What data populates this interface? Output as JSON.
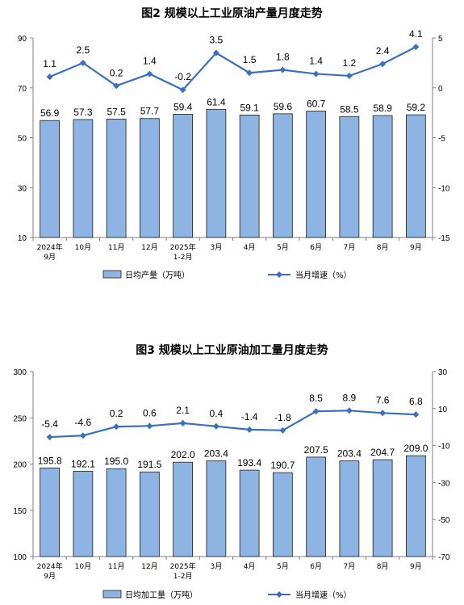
{
  "chart_data": [
    {
      "type": "bar",
      "title": "图2  规模以上工业原油产量月度走势",
      "categories": [
        "2024年\n9月",
        "10月",
        "11月",
        "12月",
        "2025年\n1-2月",
        "3月",
        "4月",
        "5月",
        "6月",
        "7月",
        "8月",
        "9月"
      ],
      "series": [
        {
          "name": "日均产量（万吨）",
          "type": "bar",
          "axis": "left",
          "color": "#8DB4E2",
          "values": [
            56.9,
            57.3,
            57.5,
            57.7,
            59.4,
            61.4,
            59.1,
            59.6,
            60.7,
            58.5,
            58.9,
            59.2
          ]
        },
        {
          "name": "当月增速（%）",
          "type": "line",
          "axis": "right",
          "color": "#3A6FC1",
          "values": [
            1.1,
            2.5,
            0.2,
            1.4,
            -0.2,
            3.5,
            1.5,
            1.8,
            1.4,
            1.2,
            2.4,
            4.1
          ]
        }
      ],
      "ylim_left": [
        10,
        90
      ],
      "yticks_left": [
        10,
        30,
        50,
        70,
        90
      ],
      "ylim_right": [
        -15,
        5
      ],
      "yticks_right": [
        -15,
        -10,
        -5,
        0,
        5
      ],
      "legend_position": "bottom",
      "grid": false
    },
    {
      "type": "bar",
      "title": "图3  规模以上工业原油加工量月度走势",
      "categories": [
        "2024年\n9月",
        "10月",
        "11月",
        "12月",
        "2025年\n1-2月",
        "3月",
        "4月",
        "5月",
        "6月",
        "7月",
        "8月",
        "9月"
      ],
      "series": [
        {
          "name": "日均加工量（万吨）",
          "type": "bar",
          "axis": "left",
          "color": "#8DB4E2",
          "values": [
            195.8,
            192.1,
            195.0,
            191.5,
            202.0,
            203.4,
            193.4,
            190.7,
            207.5,
            203.4,
            204.7,
            209.0
          ]
        },
        {
          "name": "当月增速（%）",
          "type": "line",
          "axis": "right",
          "color": "#3A6FC1",
          "values": [
            -5.4,
            -4.6,
            0.2,
            0.6,
            2.1,
            0.4,
            -1.4,
            -1.8,
            8.5,
            8.9,
            7.6,
            6.8
          ]
        }
      ],
      "ylim_left": [
        100,
        300
      ],
      "yticks_left": [
        100,
        150,
        200,
        250,
        300
      ],
      "ylim_right": [
        -70,
        30
      ],
      "yticks_right": [
        -70,
        -50,
        -30,
        -10,
        10,
        30
      ],
      "legend_position": "bottom",
      "grid": false
    }
  ]
}
